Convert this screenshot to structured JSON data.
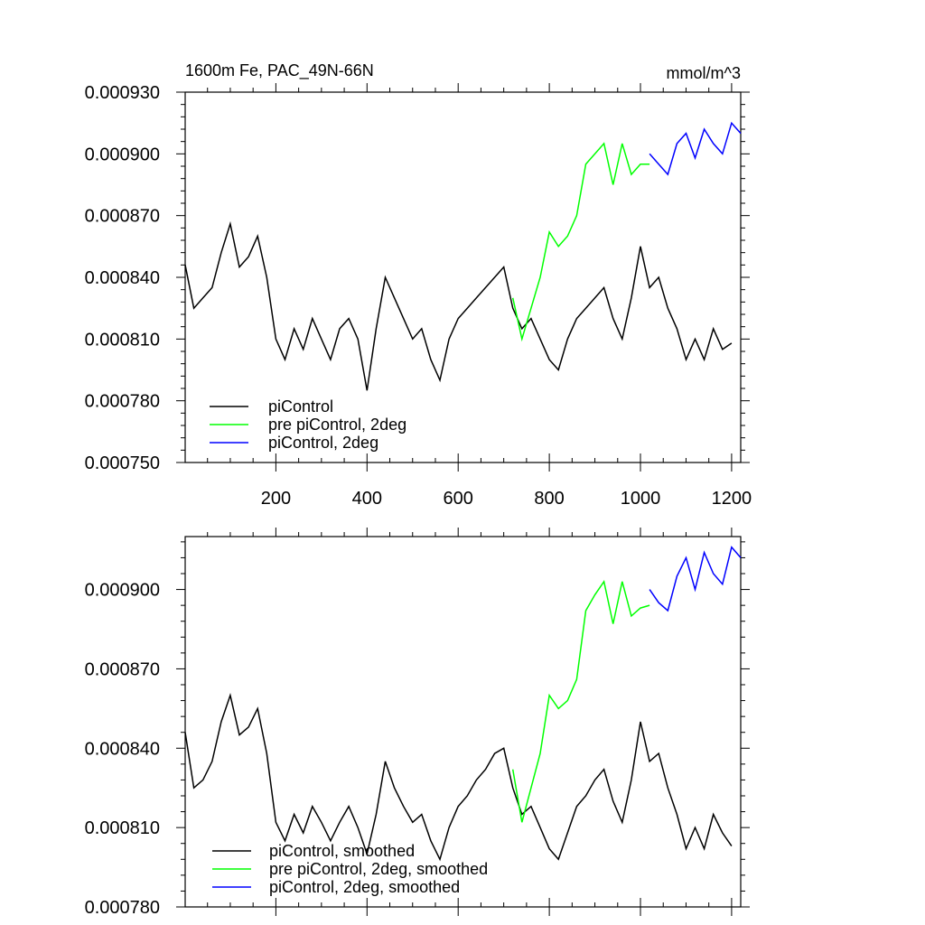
{
  "colors": {
    "black": "#000000",
    "green": "#00ff00",
    "blue": "#0000ff"
  },
  "chart_data": [
    {
      "type": "line",
      "title": "1600m Fe, PAC_49N-66N",
      "units": "mmol/m^3",
      "xlim": [
        1,
        1220
      ],
      "ylim": [
        0.00075,
        0.00093
      ],
      "yticks": [
        0.00075,
        0.00078,
        0.00081,
        0.00084,
        0.00087,
        0.0009,
        0.00093
      ],
      "ytick_labels": [
        "0.000750",
        "0.000780",
        "0.000810",
        "0.000840",
        "0.000870",
        "0.000900",
        "0.000930"
      ],
      "xticks": [
        200,
        400,
        600,
        800,
        1000,
        1200
      ],
      "xtick_labels": [
        "200",
        "400",
        "600",
        "800",
        "1000",
        "1200"
      ],
      "legend_position": "bottom-left",
      "series": [
        {
          "name": "piControl",
          "color": "#000000",
          "x": [
            1,
            20,
            40,
            60,
            80,
            100,
            120,
            140,
            160,
            180,
            200,
            220,
            240,
            260,
            280,
            300,
            320,
            340,
            360,
            380,
            400,
            420,
            440,
            460,
            480,
            500,
            520,
            540,
            560,
            580,
            600,
            620,
            640,
            660,
            680,
            700,
            720,
            740,
            760,
            780,
            800,
            820,
            840,
            860,
            880,
            900,
            920,
            940,
            960,
            980,
            1000,
            1020,
            1040,
            1060,
            1080,
            1100,
            1120,
            1140,
            1160,
            1180,
            1200
          ],
          "values": [
            0.000846,
            0.000825,
            0.00083,
            0.000835,
            0.000852,
            0.000866,
            0.000845,
            0.00085,
            0.00086,
            0.00084,
            0.00081,
            0.0008,
            0.000815,
            0.000805,
            0.00082,
            0.00081,
            0.0008,
            0.000815,
            0.00082,
            0.00081,
            0.000785,
            0.000815,
            0.00084,
            0.00083,
            0.00082,
            0.00081,
            0.000815,
            0.0008,
            0.00079,
            0.00081,
            0.00082,
            0.000825,
            0.00083,
            0.000835,
            0.00084,
            0.000845,
            0.000825,
            0.000815,
            0.00082,
            0.00081,
            0.0008,
            0.000795,
            0.00081,
            0.00082,
            0.000825,
            0.00083,
            0.000835,
            0.00082,
            0.00081,
            0.00083,
            0.000855,
            0.000835,
            0.00084,
            0.000825,
            0.000815,
            0.0008,
            0.00081,
            0.0008,
            0.000815,
            0.000805,
            0.000808
          ]
        },
        {
          "name": "pre piControl, 2deg",
          "color": "#00ff00",
          "x": [
            720,
            740,
            760,
            780,
            800,
            820,
            840,
            860,
            880,
            900,
            920,
            940,
            960,
            980,
            1000,
            1020
          ],
          "values": [
            0.00083,
            0.00081,
            0.000825,
            0.00084,
            0.000862,
            0.000855,
            0.00086,
            0.00087,
            0.000895,
            0.0009,
            0.000905,
            0.000885,
            0.000905,
            0.00089,
            0.000895,
            0.000895
          ]
        },
        {
          "name": "piControl, 2deg",
          "color": "#0000ff",
          "x": [
            1020,
            1040,
            1060,
            1080,
            1100,
            1120,
            1140,
            1160,
            1180,
            1200,
            1220
          ],
          "values": [
            0.0009,
            0.000895,
            0.00089,
            0.000905,
            0.00091,
            0.000898,
            0.000912,
            0.000905,
            0.0009,
            0.000915,
            0.00091
          ]
        }
      ]
    },
    {
      "type": "line",
      "xlim": [
        1,
        1220
      ],
      "ylim": [
        0.00078,
        0.00092
      ],
      "yticks": [
        0.00078,
        0.00081,
        0.00084,
        0.00087,
        0.0009
      ],
      "ytick_labels": [
        "0.000780",
        "0.000810",
        "0.000840",
        "0.000870",
        "0.000900"
      ],
      "xticks": [
        200,
        400,
        600,
        800,
        1000,
        1200
      ],
      "legend_position": "bottom-left",
      "series": [
        {
          "name": "piControl, smoothed",
          "color": "#000000",
          "x": [
            1,
            20,
            40,
            60,
            80,
            100,
            120,
            140,
            160,
            180,
            200,
            220,
            240,
            260,
            280,
            300,
            320,
            340,
            360,
            380,
            400,
            420,
            440,
            460,
            480,
            500,
            520,
            540,
            560,
            580,
            600,
            620,
            640,
            660,
            680,
            700,
            720,
            740,
            760,
            780,
            800,
            820,
            840,
            860,
            880,
            900,
            920,
            940,
            960,
            980,
            1000,
            1020,
            1040,
            1060,
            1080,
            1100,
            1120,
            1140,
            1160,
            1180,
            1200
          ],
          "values": [
            0.000846,
            0.000825,
            0.000828,
            0.000835,
            0.00085,
            0.00086,
            0.000845,
            0.000848,
            0.000855,
            0.000838,
            0.000812,
            0.000805,
            0.000815,
            0.000808,
            0.000818,
            0.000812,
            0.000805,
            0.000812,
            0.000818,
            0.00081,
            0.0008,
            0.000815,
            0.000835,
            0.000825,
            0.000818,
            0.000812,
            0.000815,
            0.000805,
            0.000798,
            0.00081,
            0.000818,
            0.000822,
            0.000828,
            0.000832,
            0.000838,
            0.00084,
            0.000825,
            0.000815,
            0.000818,
            0.00081,
            0.000802,
            0.000798,
            0.000808,
            0.000818,
            0.000822,
            0.000828,
            0.000832,
            0.00082,
            0.000812,
            0.000828,
            0.00085,
            0.000835,
            0.000838,
            0.000825,
            0.000815,
            0.000802,
            0.00081,
            0.000802,
            0.000815,
            0.000808,
            0.000803
          ]
        },
        {
          "name": "pre piControl, 2deg, smoothed",
          "color": "#00ff00",
          "x": [
            720,
            740,
            760,
            780,
            800,
            820,
            840,
            860,
            880,
            900,
            920,
            940,
            960,
            980,
            1000,
            1020
          ],
          "values": [
            0.000832,
            0.000812,
            0.000825,
            0.000838,
            0.00086,
            0.000855,
            0.000858,
            0.000866,
            0.000892,
            0.000898,
            0.000903,
            0.000887,
            0.000903,
            0.00089,
            0.000893,
            0.000894
          ]
        },
        {
          "name": "piControl, 2deg, smoothed",
          "color": "#0000ff",
          "x": [
            1020,
            1040,
            1060,
            1080,
            1100,
            1120,
            1140,
            1160,
            1180,
            1200,
            1220
          ],
          "values": [
            0.0009,
            0.000895,
            0.000892,
            0.000905,
            0.000912,
            0.0009,
            0.000914,
            0.000906,
            0.000902,
            0.000916,
            0.000912
          ]
        }
      ]
    }
  ]
}
